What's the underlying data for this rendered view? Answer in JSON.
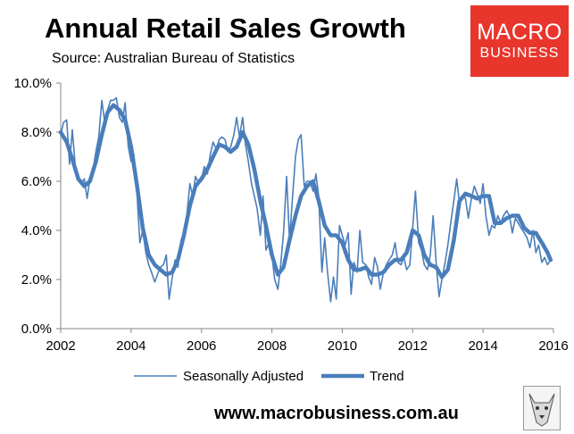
{
  "header": {
    "title": "Annual Retail Sales Growth",
    "subtitle": "Source: Australian Bureau of Statistics"
  },
  "logo": {
    "line1": "MACRO",
    "line2": "BUSINESS"
  },
  "footer": {
    "url": "www.macrobusiness.com.au"
  },
  "colors": {
    "series": "#4a7ebb",
    "axis": "#868686",
    "logo_bg": "#e8362d"
  },
  "chart_data": {
    "type": "line",
    "title": "Annual Retail Sales Growth",
    "xlabel": "",
    "ylabel": "",
    "xlim": [
      2002,
      2016
    ],
    "ylim": [
      0,
      10
    ],
    "x_ticks": [
      2002,
      2004,
      2006,
      2008,
      2010,
      2012,
      2014,
      2016
    ],
    "y_ticks": [
      0,
      2,
      4,
      6,
      8,
      10
    ],
    "x_tick_labels": [
      "2002",
      "2004",
      "2006",
      "2008",
      "2010",
      "2012",
      "2014",
      "2016"
    ],
    "y_tick_labels": [
      "0.0%",
      "2.0%",
      "4.0%",
      "6.0%",
      "8.0%",
      "10.0%"
    ],
    "grid": false,
    "legend_position": "bottom",
    "series": [
      {
        "name": "Seasonally Adjusted",
        "style": "thin",
        "x": [
          2002.0,
          2002.08,
          2002.17,
          2002.25,
          2002.33,
          2002.42,
          2002.5,
          2002.58,
          2002.67,
          2002.75,
          2002.83,
          2002.92,
          2003.0,
          2003.08,
          2003.17,
          2003.25,
          2003.33,
          2003.42,
          2003.5,
          2003.58,
          2003.67,
          2003.75,
          2003.83,
          2003.92,
          2004.0,
          2004.08,
          2004.17,
          2004.25,
          2004.33,
          2004.42,
          2004.5,
          2004.58,
          2004.67,
          2004.75,
          2004.83,
          2004.92,
          2005.0,
          2005.08,
          2005.17,
          2005.25,
          2005.33,
          2005.42,
          2005.5,
          2005.58,
          2005.67,
          2005.75,
          2005.83,
          2005.92,
          2006.0,
          2006.08,
          2006.17,
          2006.25,
          2006.33,
          2006.42,
          2006.5,
          2006.58,
          2006.67,
          2006.75,
          2006.83,
          2006.92,
          2007.0,
          2007.08,
          2007.17,
          2007.25,
          2007.33,
          2007.42,
          2007.5,
          2007.58,
          2007.67,
          2007.75,
          2007.83,
          2007.92,
          2008.0,
          2008.08,
          2008.17,
          2008.25,
          2008.33,
          2008.42,
          2008.5,
          2008.58,
          2008.67,
          2008.75,
          2008.83,
          2008.92,
          2009.0,
          2009.08,
          2009.17,
          2009.25,
          2009.33,
          2009.42,
          2009.5,
          2009.58,
          2009.67,
          2009.75,
          2009.83,
          2009.92,
          2010.0,
          2010.08,
          2010.17,
          2010.25,
          2010.33,
          2010.42,
          2010.5,
          2010.58,
          2010.67,
          2010.75,
          2010.83,
          2010.92,
          2011.0,
          2011.08,
          2011.17,
          2011.25,
          2011.33,
          2011.42,
          2011.5,
          2011.58,
          2011.67,
          2011.75,
          2011.83,
          2011.92,
          2012.0,
          2012.08,
          2012.17,
          2012.25,
          2012.33,
          2012.42,
          2012.5,
          2012.58,
          2012.67,
          2012.75,
          2012.83,
          2012.92,
          2013.0,
          2013.08,
          2013.17,
          2013.25,
          2013.33,
          2013.42,
          2013.5,
          2013.58,
          2013.67,
          2013.75,
          2013.83,
          2013.92,
          2014.0,
          2014.08,
          2014.17,
          2014.25,
          2014.33,
          2014.42,
          2014.5,
          2014.58,
          2014.67,
          2014.75,
          2014.83,
          2014.92,
          2015.0,
          2015.08,
          2015.17,
          2015.25,
          2015.33,
          2015.42,
          2015.5,
          2015.58,
          2015.67,
          2015.75,
          2015.83,
          2015.92
        ],
        "values": [
          7.9,
          8.4,
          8.5,
          6.7,
          8.1,
          6.5,
          6.2,
          5.9,
          6.1,
          5.3,
          6.1,
          6.5,
          7.2,
          7.8,
          9.3,
          8.4,
          8.9,
          9.3,
          9.3,
          9.4,
          8.6,
          8.4,
          9.2,
          7.4,
          6.8,
          7.1,
          5.4,
          3.5,
          4.0,
          3.1,
          2.6,
          2.3,
          1.9,
          2.2,
          2.5,
          2.6,
          3.0,
          1.2,
          2.1,
          2.8,
          2.5,
          3.6,
          3.9,
          4.6,
          5.9,
          5.4,
          6.2,
          5.9,
          6.1,
          6.6,
          6.3,
          7.1,
          7.6,
          7.3,
          7.7,
          7.8,
          7.7,
          7.2,
          7.4,
          7.9,
          8.6,
          7.8,
          8.6,
          7.5,
          6.8,
          5.9,
          5.4,
          4.9,
          3.8,
          5.4,
          3.2,
          3.5,
          3.0,
          2.0,
          1.6,
          2.6,
          3.9,
          6.2,
          3.6,
          5.2,
          7.0,
          7.7,
          7.9,
          5.8,
          6.0,
          6.0,
          5.6,
          6.3,
          5.4,
          2.3,
          3.7,
          2.3,
          1.1,
          2.1,
          1.2,
          4.2,
          3.8,
          3.4,
          3.9,
          1.4,
          2.7,
          2.3,
          4.0,
          2.7,
          2.6,
          2.1,
          1.8,
          2.9,
          2.5,
          1.6,
          2.3,
          2.6,
          2.8,
          3.0,
          3.5,
          2.7,
          2.6,
          2.9,
          2.4,
          2.6,
          4.1,
          5.6,
          3.5,
          3.2,
          2.6,
          2.4,
          3.0,
          4.6,
          2.6,
          1.3,
          2.0,
          2.7,
          3.4,
          4.3,
          5.2,
          6.1,
          5.1,
          5.4,
          5.3,
          4.5,
          5.3,
          5.8,
          5.5,
          5.1,
          5.9,
          4.6,
          3.8,
          4.2,
          4.1,
          4.6,
          4.3,
          4.6,
          4.8,
          4.6,
          3.9,
          4.5,
          4.3,
          4.1,
          3.9,
          3.7,
          3.3,
          4.0,
          3.1,
          3.4,
          2.7,
          2.9,
          2.6,
          2.8
        ]
      },
      {
        "name": "Trend",
        "style": "thick",
        "x": [
          2002.0,
          2002.17,
          2002.33,
          2002.5,
          2002.67,
          2002.83,
          2003.0,
          2003.17,
          2003.33,
          2003.5,
          2003.67,
          2003.83,
          2004.0,
          2004.17,
          2004.33,
          2004.5,
          2004.67,
          2004.83,
          2005.0,
          2005.17,
          2005.33,
          2005.5,
          2005.67,
          2005.83,
          2006.0,
          2006.17,
          2006.33,
          2006.5,
          2006.67,
          2006.83,
          2007.0,
          2007.17,
          2007.33,
          2007.5,
          2007.67,
          2007.83,
          2008.0,
          2008.17,
          2008.33,
          2008.5,
          2008.67,
          2008.83,
          2009.0,
          2009.17,
          2009.33,
          2009.5,
          2009.67,
          2009.83,
          2010.0,
          2010.17,
          2010.33,
          2010.5,
          2010.67,
          2010.83,
          2011.0,
          2011.17,
          2011.33,
          2011.5,
          2011.67,
          2011.83,
          2012.0,
          2012.17,
          2012.33,
          2012.5,
          2012.67,
          2012.83,
          2013.0,
          2013.17,
          2013.33,
          2013.5,
          2013.67,
          2013.83,
          2014.0,
          2014.17,
          2014.33,
          2014.5,
          2014.67,
          2014.83,
          2015.0,
          2015.17,
          2015.33,
          2015.5,
          2015.67,
          2015.83,
          2015.92
        ],
        "values": [
          8.0,
          7.6,
          6.9,
          6.1,
          5.8,
          6.0,
          6.8,
          7.9,
          8.8,
          9.1,
          8.9,
          8.5,
          7.4,
          5.8,
          4.1,
          3.0,
          2.6,
          2.4,
          2.2,
          2.3,
          2.8,
          3.8,
          5.0,
          5.8,
          6.1,
          6.5,
          7.0,
          7.5,
          7.4,
          7.2,
          7.4,
          8.0,
          7.5,
          6.5,
          5.2,
          4.2,
          3.0,
          2.2,
          2.5,
          3.6,
          4.6,
          5.4,
          5.8,
          6.0,
          5.2,
          4.2,
          3.8,
          3.8,
          3.5,
          2.8,
          2.4,
          2.4,
          2.5,
          2.2,
          2.2,
          2.3,
          2.6,
          2.8,
          2.8,
          3.1,
          4.0,
          3.8,
          3.0,
          2.6,
          2.5,
          2.1,
          2.4,
          3.6,
          5.2,
          5.5,
          5.4,
          5.3,
          5.4,
          5.4,
          4.3,
          4.3,
          4.5,
          4.6,
          4.6,
          4.1,
          3.9,
          3.9,
          3.5,
          3.1,
          2.8
        ]
      }
    ]
  }
}
